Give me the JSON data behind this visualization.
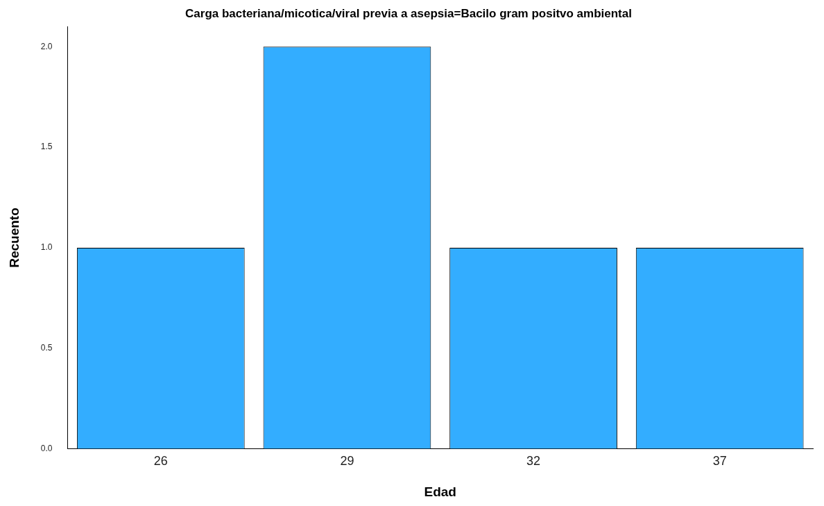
{
  "chart_data": {
    "type": "bar",
    "title": "Carga bacteriana/micotica/viral previa a asepsia=Bacilo gram positvo ambiental",
    "xlabel": "Edad",
    "ylabel": "Recuento",
    "categories": [
      "26",
      "29",
      "32",
      "37"
    ],
    "values": [
      1,
      2,
      1,
      1
    ],
    "color": "#33adff",
    "ylim": [
      0,
      2.1
    ],
    "yticks": [
      {
        "value": 0,
        "label": "0.0"
      },
      {
        "value": 0.5,
        "label": "0.5"
      },
      {
        "value": 1,
        "label": "1.0"
      },
      {
        "value": 1.5,
        "label": "1.5"
      },
      {
        "value": 2,
        "label": "2.0"
      }
    ],
    "grid": false,
    "legend": false
  }
}
